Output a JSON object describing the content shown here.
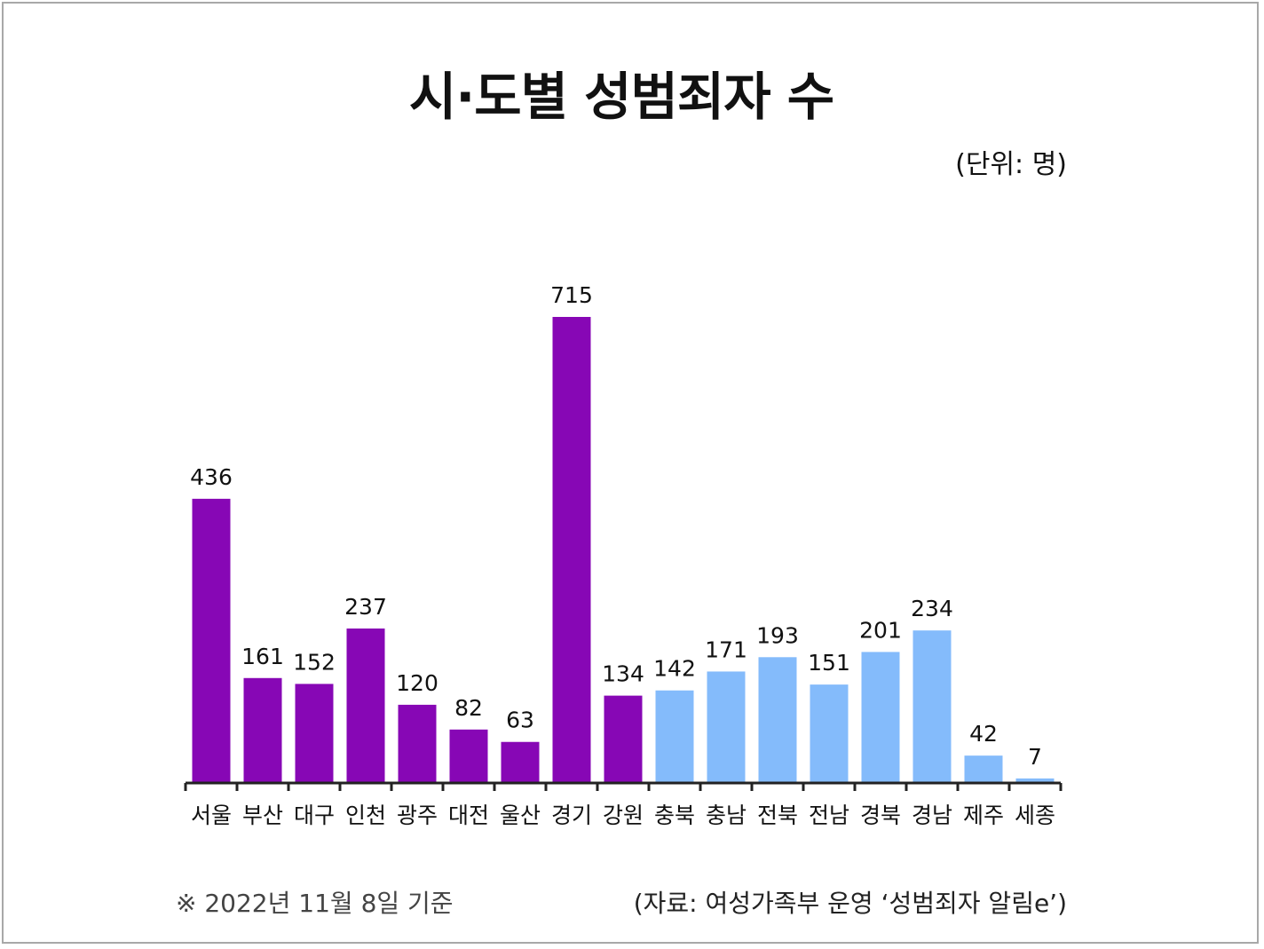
{
  "title": "시·도별 성범죄자 수",
  "unit": "(단위: 명)",
  "note": "※ 2022년 11월 8일 기준",
  "source": "(자료: 여성가족부 운영 ‘성범죄자 알림e’)",
  "colors": {
    "group_a": "#8707b5",
    "group_b": "#84bbfb",
    "axis": "#222222",
    "text": "#111111"
  },
  "chart_data": {
    "type": "bar",
    "title": "시·도별 성범죄자 수",
    "unit": "(단위: 명)",
    "categories": [
      "서울",
      "부산",
      "대구",
      "인천",
      "광주",
      "대전",
      "울산",
      "경기",
      "강원",
      "충북",
      "충남",
      "전북",
      "전남",
      "경북",
      "경남",
      "제주",
      "세종"
    ],
    "values": [
      436,
      161,
      152,
      237,
      120,
      82,
      63,
      715,
      134,
      142,
      171,
      193,
      151,
      201,
      234,
      42,
      7
    ],
    "color_groups": [
      "a",
      "a",
      "a",
      "a",
      "a",
      "a",
      "a",
      "a",
      "a",
      "b",
      "b",
      "b",
      "b",
      "b",
      "b",
      "b",
      "b"
    ],
    "ylim": [
      0,
      715
    ],
    "grid": false,
    "legend": "none",
    "data_labels": true
  }
}
